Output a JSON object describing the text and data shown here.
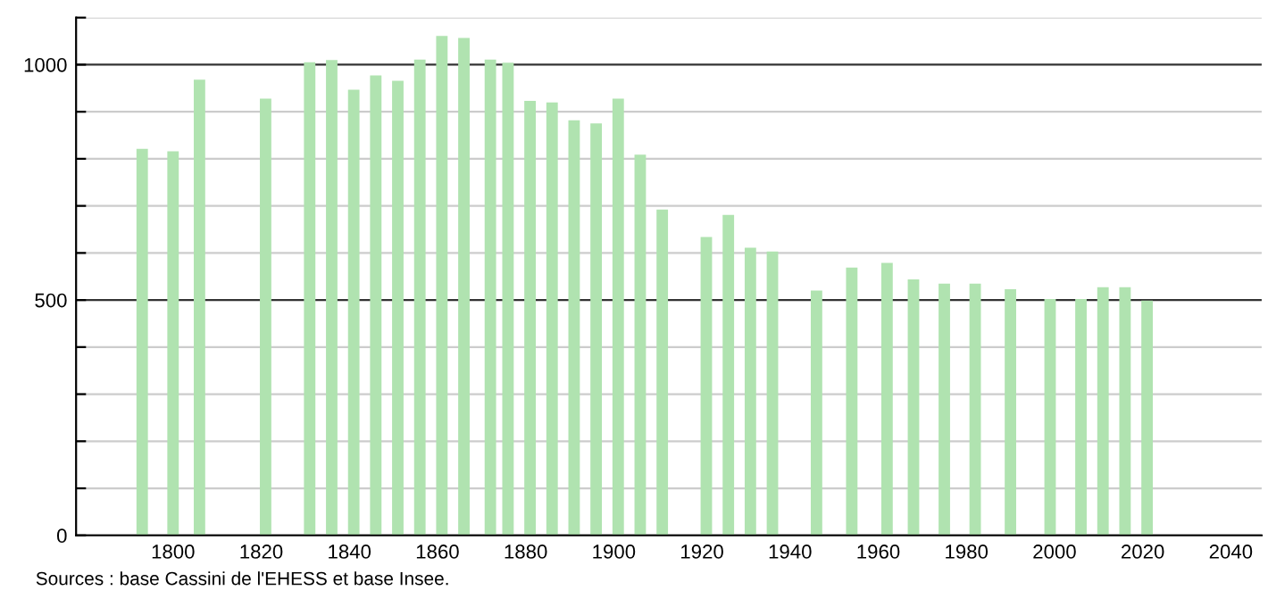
{
  "chart_data": {
    "type": "bar",
    "x": [
      1793,
      1800,
      1806,
      1821,
      1831,
      1836,
      1841,
      1846,
      1851,
      1856,
      1861,
      1866,
      1872,
      1876,
      1881,
      1886,
      1891,
      1896,
      1901,
      1906,
      1911,
      1921,
      1926,
      1931,
      1936,
      1946,
      1954,
      1962,
      1968,
      1975,
      1982,
      1990,
      1999,
      2006,
      2011,
      2016,
      2021
    ],
    "values": [
      821,
      816,
      968,
      928,
      1005,
      1010,
      947,
      977,
      966,
      1011,
      1061,
      1057,
      1011,
      1004,
      923,
      920,
      882,
      875,
      928,
      809,
      692,
      634,
      681,
      611,
      603,
      520,
      569,
      579,
      544,
      535,
      535,
      523,
      502,
      502,
      527,
      527,
      499
    ],
    "color": "#b0e3b0",
    "xlim": [
      1778,
      2047
    ],
    "xticks": [
      1800,
      1820,
      1840,
      1860,
      1880,
      1900,
      1920,
      1940,
      1960,
      1980,
      2000,
      2020,
      2040
    ],
    "ylim": [
      0,
      1100
    ],
    "yticks": [
      0,
      {
        "value": 100,
        "label": null
      },
      {
        "value": 200,
        "label": null
      },
      {
        "value": 300,
        "label": null
      },
      {
        "value": 400,
        "label": null
      },
      500,
      {
        "value": 600,
        "label": null
      },
      {
        "value": 700,
        "label": null
      },
      {
        "value": 800,
        "label": null
      },
      {
        "value": 900,
        "label": null
      },
      1000,
      {
        "value": 1100,
        "label": null
      }
    ],
    "grid": "y",
    "annotations": [
      "Sources : base Cassini de l'EHESS et base Insee."
    ]
  }
}
